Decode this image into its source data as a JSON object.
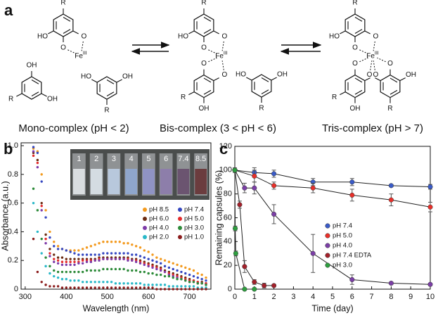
{
  "panel_a": {
    "label": "a",
    "atoms": {
      "HO": "HO",
      "OH": "OH",
      "O": "O",
      "R": "R",
      "Fe": "Fe",
      "ox": "III"
    },
    "captions": [
      "Mono-complex (pH < 2)",
      "Bis-complex (3 < pH < 6)",
      "Tris-complex (pH > 7)"
    ]
  },
  "chart_data": [
    {
      "type": "scatter",
      "panel_label": "b",
      "x_label": "Wavelength (nm)",
      "y_label": "Absorbance (a.u.)",
      "inset_labels": [
        "1",
        "2",
        "3",
        "4",
        "5",
        "6",
        "7.4",
        "8.5"
      ],
      "x": [
        320,
        330,
        340,
        350,
        360,
        370,
        380,
        390,
        400,
        410,
        420,
        430,
        440,
        450,
        460,
        470,
        480,
        490,
        500,
        510,
        520,
        530,
        540,
        550,
        560,
        570,
        580,
        590,
        600,
        610,
        620,
        630,
        640,
        650,
        660,
        670,
        680,
        690,
        700,
        710,
        720,
        730,
        740
      ],
      "xlim": [
        290,
        752
      ],
      "xticks": [
        300,
        400,
        500,
        600,
        700
      ],
      "ylim": [
        0,
        1.02
      ],
      "yticks": [
        0,
        0.2,
        0.4,
        0.6,
        0.8,
        {
          "value": 1,
          "label": "1.0"
        }
      ],
      "series": [
        {
          "name": "pH 8.5",
          "color": "#f39a1e",
          "values": [
            0.98,
            0.96,
            0.8,
            0.55,
            0.4,
            0.33,
            0.3,
            0.28,
            0.27,
            0.27,
            0.27,
            0.27,
            0.28,
            0.29,
            0.3,
            0.31,
            0.32,
            0.33,
            0.33,
            0.33,
            0.33,
            0.33,
            0.32,
            0.32,
            0.31,
            0.3,
            0.29,
            0.27,
            0.26,
            0.24,
            0.22,
            0.21,
            0.2,
            0.19,
            0.18,
            0.17,
            0.16,
            0.15,
            0.14,
            0.13,
            0.11,
            0.1,
            0.08
          ]
        },
        {
          "name": "pH 7.4",
          "color": "#3446c0",
          "values": [
            0.99,
            0.95,
            0.75,
            0.5,
            0.36,
            0.3,
            0.28,
            0.28,
            0.27,
            0.26,
            0.25,
            0.24,
            0.24,
            0.24,
            0.24,
            0.24,
            0.24,
            0.25,
            0.25,
            0.25,
            0.25,
            0.25,
            0.25,
            0.25,
            0.24,
            0.24,
            0.23,
            0.22,
            0.21,
            0.2,
            0.19,
            0.18,
            0.16,
            0.15,
            0.14,
            0.13,
            0.12,
            0.11,
            0.1,
            0.09,
            0.08,
            0.07,
            0.06
          ]
        },
        {
          "name": "pH 6.0",
          "color": "#6b2a10",
          "values": [
            0.95,
            0.9,
            0.6,
            0.38,
            0.28,
            0.24,
            0.22,
            0.22,
            0.21,
            0.21,
            0.21,
            0.21,
            0.21,
            0.21,
            0.21,
            0.21,
            0.22,
            0.22,
            0.22,
            0.22,
            0.22,
            0.22,
            0.22,
            0.22,
            0.21,
            0.21,
            0.2,
            0.19,
            0.18,
            0.17,
            0.16,
            0.15,
            0.13,
            0.12,
            0.11,
            0.1,
            0.09,
            0.08,
            0.07,
            0.06,
            0.05,
            0.05,
            0.04
          ]
        },
        {
          "name": "pH 5.0",
          "color": "#e32b2b",
          "values": [
            0.93,
            0.88,
            0.58,
            0.35,
            0.25,
            0.21,
            0.2,
            0.19,
            0.19,
            0.19,
            0.19,
            0.19,
            0.2,
            0.2,
            0.2,
            0.2,
            0.21,
            0.21,
            0.21,
            0.21,
            0.21,
            0.21,
            0.21,
            0.21,
            0.2,
            0.2,
            0.19,
            0.18,
            0.17,
            0.16,
            0.15,
            0.14,
            0.12,
            0.11,
            0.1,
            0.09,
            0.08,
            0.07,
            0.06,
            0.06,
            0.05,
            0.04,
            0.04
          ]
        },
        {
          "name": "pH 4.0",
          "color": "#7d3aa8",
          "values": [
            0.96,
            0.85,
            0.55,
            0.32,
            0.23,
            0.19,
            0.18,
            0.17,
            0.17,
            0.17,
            0.17,
            0.18,
            0.18,
            0.19,
            0.19,
            0.2,
            0.2,
            0.21,
            0.21,
            0.21,
            0.21,
            0.21,
            0.21,
            0.2,
            0.2,
            0.19,
            0.18,
            0.17,
            0.16,
            0.15,
            0.14,
            0.13,
            0.12,
            0.1,
            0.09,
            0.08,
            0.07,
            0.06,
            0.05,
            0.05,
            0.04,
            0.04,
            0.03
          ]
        },
        {
          "name": "pH 3.0",
          "color": "#2e8b3a",
          "values": [
            0.7,
            0.55,
            0.35,
            0.22,
            0.16,
            0.13,
            0.12,
            0.12,
            0.12,
            0.12,
            0.12,
            0.12,
            0.12,
            0.13,
            0.13,
            0.13,
            0.13,
            0.14,
            0.14,
            0.14,
            0.14,
            0.14,
            0.14,
            0.13,
            0.13,
            0.13,
            0.12,
            0.12,
            0.11,
            0.11,
            0.1,
            0.1,
            0.09,
            0.09,
            0.08,
            0.07,
            0.07,
            0.06,
            0.05,
            0.05,
            0.04,
            0.04,
            0.03
          ]
        },
        {
          "name": "pH 2.0",
          "color": "#29b8c8",
          "values": [
            0.6,
            0.4,
            0.25,
            0.16,
            0.11,
            0.09,
            0.08,
            0.07,
            0.07,
            0.06,
            0.06,
            0.06,
            0.05,
            0.05,
            0.05,
            0.05,
            0.05,
            0.05,
            0.05,
            0.05,
            0.04,
            0.04,
            0.04,
            0.04,
            0.04,
            0.04,
            0.04,
            0.03,
            0.03,
            0.03,
            0.03,
            0.03,
            0.03,
            0.02,
            0.02,
            0.02,
            0.02,
            0.02,
            0.02,
            0.02,
            0.01,
            0.01,
            0.01
          ]
        },
        {
          "name": "pH 1.0",
          "color": "#8b1c1c",
          "values": [
            0.35,
            0.12,
            0.05,
            0.03,
            0.02,
            0.02,
            0.02,
            0.01,
            0.01,
            0.01,
            0.01,
            0.01,
            0.01,
            0.01,
            0.01,
            0.01,
            0.01,
            0.01,
            0.01,
            0.01,
            0.01,
            0.01,
            0.01,
            0.01,
            0.01,
            0.01,
            0.01,
            0.01,
            0.01,
            0.01,
            0,
            0,
            0,
            0,
            0,
            0,
            0,
            0,
            0,
            0,
            0,
            0,
            0
          ]
        }
      ]
    },
    {
      "type": "line",
      "panel_label": "c",
      "x_label": "Time (day)",
      "y_label": "Remaining capsules (%)",
      "xlim": [
        0,
        10
      ],
      "xticks": [
        0,
        1,
        2,
        3,
        4,
        5,
        6,
        7,
        8,
        9,
        10
      ],
      "ylim": [
        0,
        120
      ],
      "yticks": [
        0,
        20,
        40,
        60,
        80,
        100,
        120
      ],
      "series": [
        {
          "name": "pH 7.4",
          "color": "#3a5bc7",
          "x": [
            0,
            1,
            2,
            4,
            6,
            8,
            10
          ],
          "values": [
            100,
            98,
            97,
            90,
            90,
            87,
            86
          ],
          "errors": [
            2,
            4,
            3,
            3,
            3,
            1,
            2
          ]
        },
        {
          "name": "pH 5.0",
          "color": "#e8302a",
          "x": [
            0,
            1,
            2,
            4,
            6,
            8,
            10
          ],
          "values": [
            100,
            95,
            87,
            85,
            79,
            75,
            69
          ],
          "errors": [
            1,
            5,
            3,
            4,
            5,
            5,
            4
          ]
        },
        {
          "name": "pH 4.0",
          "color": "#7b3fa6",
          "x": [
            0,
            0.5,
            1,
            2,
            4,
            6,
            8,
            10
          ],
          "values": [
            100,
            85,
            85,
            63,
            30,
            8,
            5,
            4
          ],
          "errors": [
            1,
            4,
            5,
            8,
            16,
            4,
            1,
            1
          ]
        },
        {
          "name": "pH 7.4 EDTA",
          "color": "#a3212b",
          "x": [
            0,
            0.25,
            0.5,
            1,
            1.5,
            2
          ],
          "values": [
            100,
            71,
            19,
            6,
            3,
            3
          ],
          "errors": [
            1,
            3,
            5,
            2,
            2,
            1
          ]
        },
        {
          "name": "pH 3.0",
          "color": "#2e9e3f",
          "x": [
            0,
            0.02,
            0.05,
            0.5,
            1
          ],
          "values": [
            100,
            51,
            30,
            0,
            0
          ],
          "errors": [
            1,
            2,
            2,
            0,
            0
          ]
        }
      ]
    }
  ]
}
